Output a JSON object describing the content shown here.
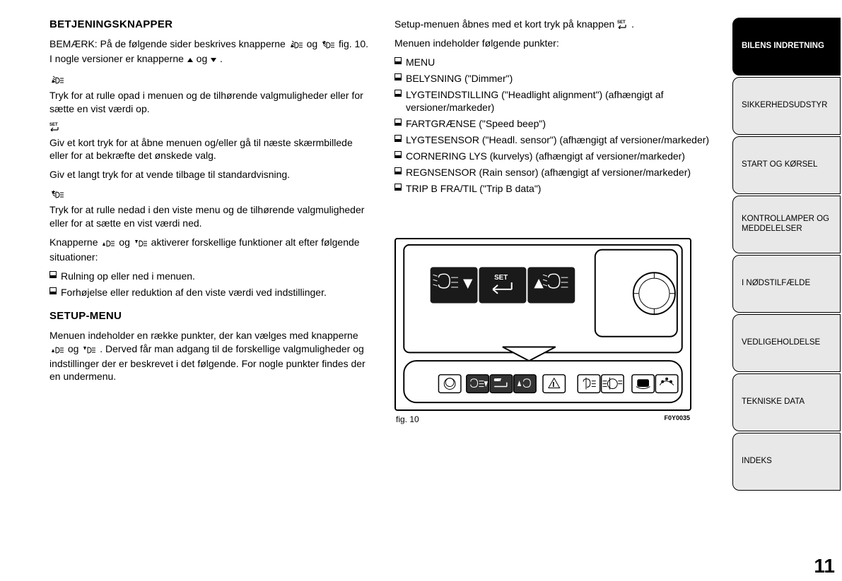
{
  "left": {
    "h1": "BETJENINGSKNAPPER",
    "p1a": "BEMÆRK: På de følgende sider beskrives knapperne ",
    "p1b": " og ",
    "p1c": " fig. 10. I nogle versioner er knapperne ",
    "p1d": " og ",
    "p1e": " .",
    "p2": "Tryk for at rulle opad i menuen og de tilhørende valgmuligheder eller for sætte en vist værdi op.",
    "p3": "Giv et kort tryk for at åbne menuen og/eller gå til næste skærmbillede eller for at bekræfte det ønskede valg.",
    "p4": "Giv et langt tryk for at vende tilbage til standardvisning.",
    "p5": "Tryk for at rulle nedad i den viste menu og de tilhørende valgmuligheder eller for at sætte en vist værdi ned.",
    "p6a": "Knapperne ",
    "p6b": " og ",
    "p6c": " aktiverer forskellige funktioner alt efter følgende situationer:",
    "b1": "Rulning op eller ned i menuen.",
    "b2": "Forhøjelse eller reduktion af den viste værdi ved indstillinger.",
    "h2": "SETUP-MENU",
    "p7a": "Menuen indeholder en række punkter, der kan vælges med knapperne ",
    "p7b": " og ",
    "p7c": " . Derved får man adgang til de forskellige valgmuligheder og indstillinger der er beskrevet i det følgende. For nogle punkter findes der en undermenu."
  },
  "right": {
    "p1a": "Setup-menuen åbnes med et kort tryk på knappen ",
    "p1b": " .",
    "p2": "Menuen indeholder følgende punkter:",
    "items": [
      "MENU",
      "BELYSNING (\"Dimmer\")",
      "LYGTEINDSTILLING (\"Headlight alignment\") (afhængigt af versioner/markeder)",
      "FARTGRÆNSE (\"Speed beep\")",
      "LYGTESENSOR (\"Headl. sensor\") (afhængigt af versioner/markeder)",
      "CORNERING LYS (kurvelys) (afhængigt af versioner/markeder)",
      "REGNSENSOR (Rain sensor) (afhængigt af versioner/markeder)",
      "TRIP B FRA/TIL (\"Trip B data\")"
    ],
    "fig_label": "fig. 10",
    "fig_code": "F0Y0035"
  },
  "tabs": [
    {
      "label": "BILENS INDRETNING",
      "active": true
    },
    {
      "label": "SIKKERHEDSUDSTYR",
      "active": false
    },
    {
      "label": "START OG KØRSEL",
      "active": false
    },
    {
      "label": "KONTROLLAMPER OG MEDDELELSER",
      "active": false
    },
    {
      "label": "I NØDSTILFÆLDE",
      "active": false
    },
    {
      "label": "VEDLIGEHOLDELSE",
      "active": false
    },
    {
      "label": "TEKNISKE DATA",
      "active": false
    },
    {
      "label": "INDEKS",
      "active": false
    }
  ],
  "pagenum": "11",
  "set_label": "SET"
}
